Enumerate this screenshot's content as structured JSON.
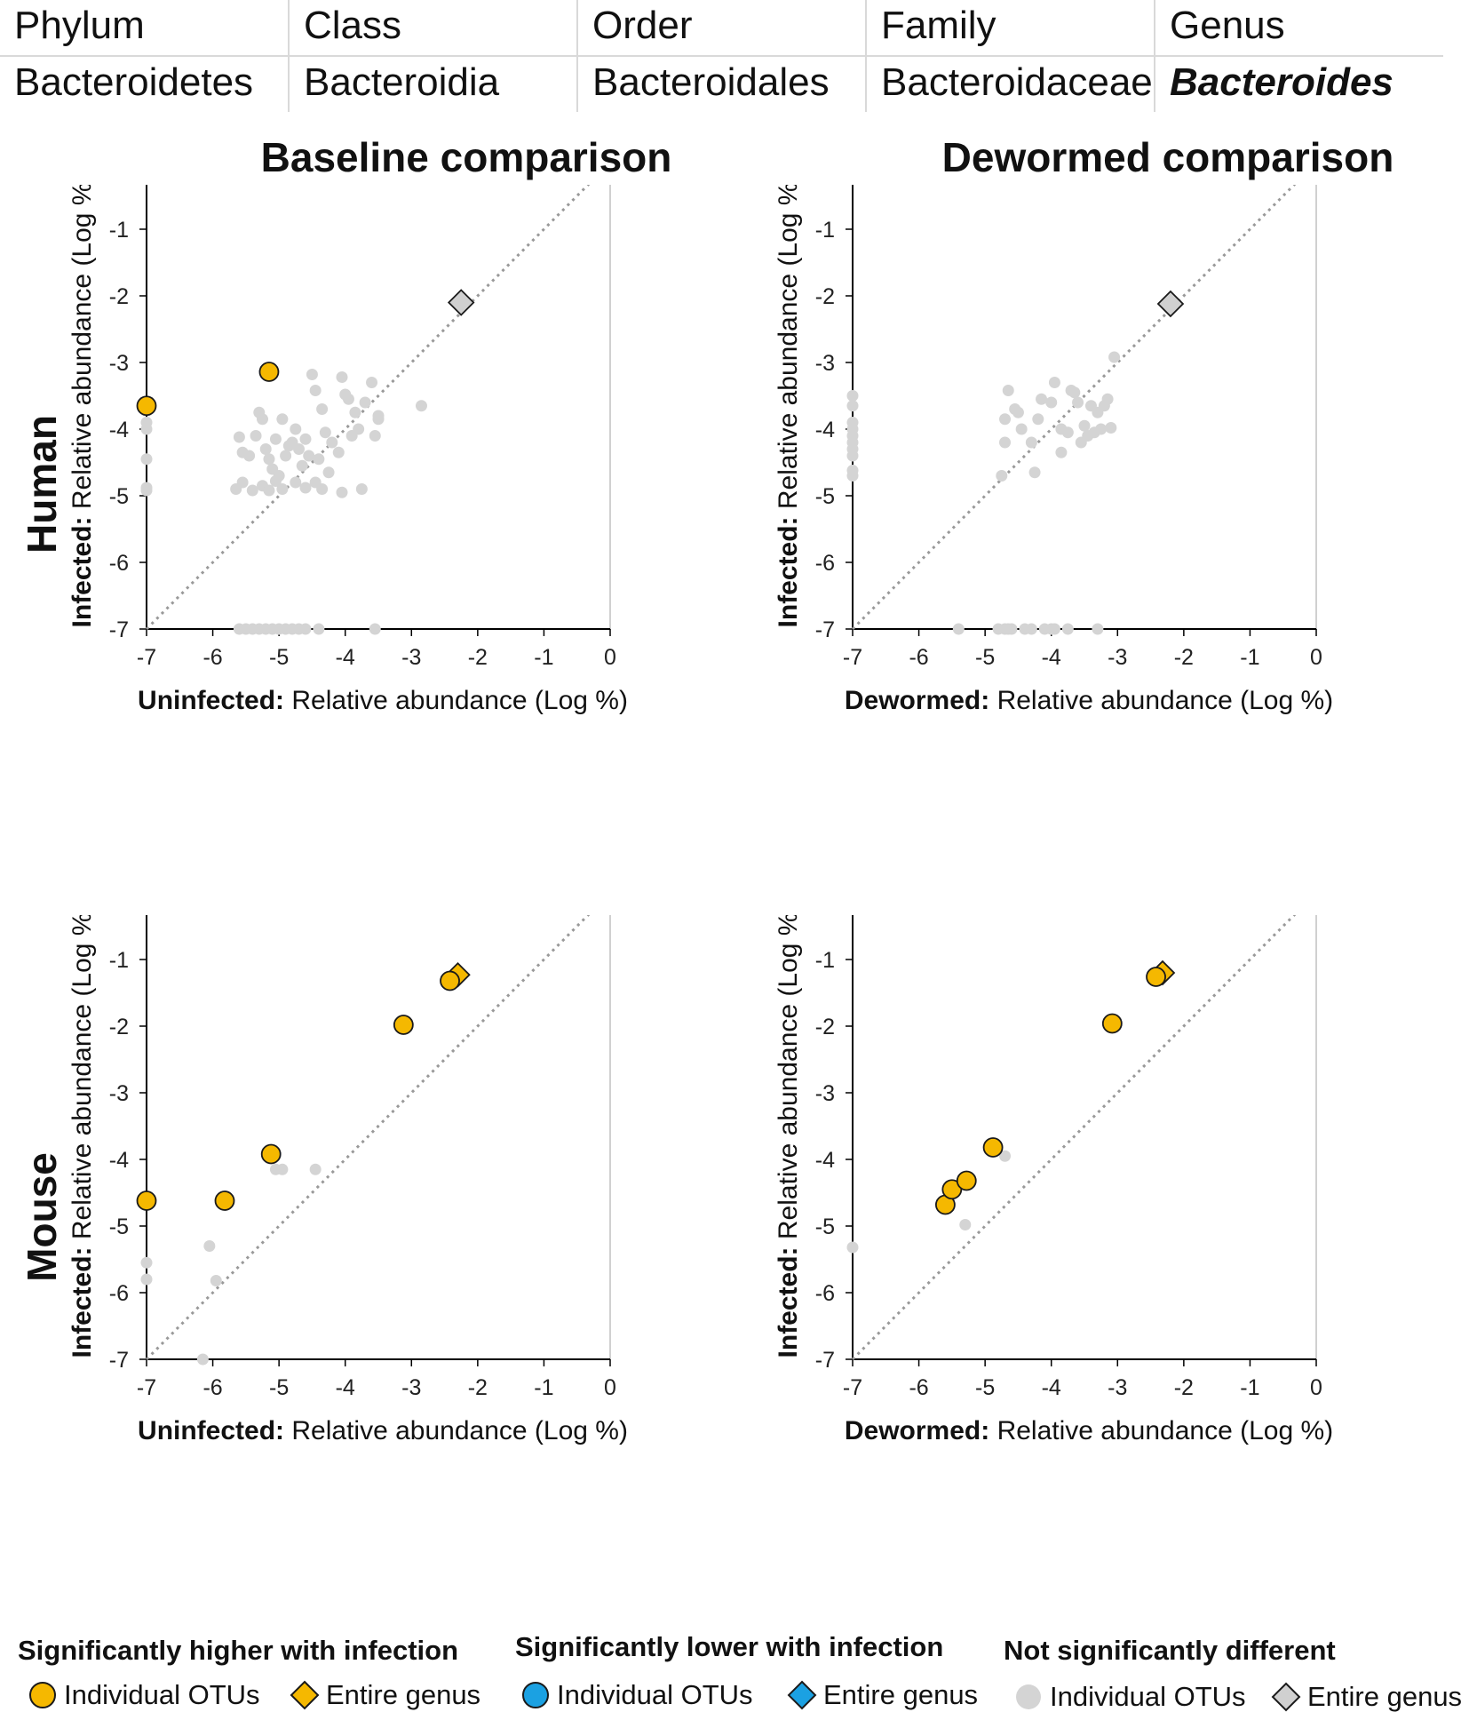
{
  "taxonomy": {
    "headers": [
      "Phylum",
      "Class",
      "Order",
      "Family",
      "Genus"
    ],
    "values": [
      "Bacteroidetes",
      "Bacteroidia",
      "Bacteroidales",
      "Bacteroidaceae",
      "Bacteroides"
    ]
  },
  "column_titles": [
    "Baseline comparison",
    "Dewormed comparison"
  ],
  "row_labels": [
    "Human",
    "Mouse"
  ],
  "colors": {
    "higher": "#f5b800",
    "lower": "#1ba1e2",
    "ns_point": "#d4d4d4",
    "ns_diamond": "#d0d0d0",
    "outline": "#1a1a1a",
    "diagonal": "#999999",
    "frame": "#d0d0d0"
  },
  "chart_data": [
    {
      "type": "scatter",
      "panel": "human-baseline",
      "xlabel_bold": "Uninfected:",
      "xlabel": "Relative abundance (Log %)",
      "ylabel_bold": "Infected:",
      "ylabel": "Relative abundance (Log %)",
      "xlim": [
        -7,
        0
      ],
      "ylim": [
        -7,
        0
      ],
      "xticks": [
        "-7",
        "-6",
        "-5",
        "-4",
        "-3",
        "-2",
        "-1",
        "0"
      ],
      "yticks": [
        "0",
        "-1",
        "-2",
        "-3",
        "-4",
        "-5",
        "-6",
        "-7"
      ],
      "diagonal": true,
      "ns_points": [
        [
          -7,
          -3.9
        ],
        [
          -7,
          -4.0
        ],
        [
          -7,
          -4.45
        ],
        [
          -7,
          -4.88
        ],
        [
          -7,
          -4.92
        ],
        [
          -5.6,
          -4.12
        ],
        [
          -5.55,
          -4.35
        ],
        [
          -5.45,
          -4.4
        ],
        [
          -5.35,
          -4.1
        ],
        [
          -5.3,
          -3.75
        ],
        [
          -5.25,
          -3.85
        ],
        [
          -5.2,
          -4.3
        ],
        [
          -5.15,
          -4.45
        ],
        [
          -5.1,
          -4.6
        ],
        [
          -5.05,
          -4.15
        ],
        [
          -5.0,
          -4.7
        ],
        [
          -4.95,
          -3.85
        ],
        [
          -4.9,
          -4.4
        ],
        [
          -4.85,
          -4.25
        ],
        [
          -4.8,
          -4.2
        ],
        [
          -4.75,
          -4.0
        ],
        [
          -4.7,
          -4.3
        ],
        [
          -4.65,
          -4.55
        ],
        [
          -4.6,
          -4.15
        ],
        [
          -4.55,
          -4.4
        ],
        [
          -4.5,
          -3.18
        ],
        [
          -4.45,
          -3.42
        ],
        [
          -4.4,
          -4.45
        ],
        [
          -4.35,
          -3.7
        ],
        [
          -4.3,
          -4.05
        ],
        [
          -4.25,
          -4.65
        ],
        [
          -4.2,
          -4.2
        ],
        [
          -4.1,
          -4.35
        ],
        [
          -4.05,
          -3.22
        ],
        [
          -4.0,
          -3.48
        ],
        [
          -3.95,
          -3.55
        ],
        [
          -3.9,
          -4.1
        ],
        [
          -3.85,
          -3.75
        ],
        [
          -3.8,
          -4.0
        ],
        [
          -3.7,
          -3.6
        ],
        [
          -3.6,
          -3.3
        ],
        [
          -3.55,
          -4.1
        ],
        [
          -3.5,
          -3.85
        ],
        [
          -3.5,
          -3.8
        ],
        [
          -2.85,
          -3.65
        ],
        [
          -5.65,
          -4.9
        ],
        [
          -5.55,
          -4.8
        ],
        [
          -5.4,
          -4.92
        ],
        [
          -5.25,
          -4.85
        ],
        [
          -5.15,
          -4.92
        ],
        [
          -5.05,
          -4.78
        ],
        [
          -4.95,
          -4.9
        ],
        [
          -4.75,
          -4.8
        ],
        [
          -4.6,
          -4.88
        ],
        [
          -4.45,
          -4.8
        ],
        [
          -4.35,
          -4.9
        ],
        [
          -4.05,
          -4.95
        ],
        [
          -3.75,
          -4.9
        ],
        [
          -5.6,
          -7
        ],
        [
          -5.5,
          -7
        ],
        [
          -5.4,
          -7
        ],
        [
          -5.3,
          -7
        ],
        [
          -5.2,
          -7
        ],
        [
          -5.1,
          -7
        ],
        [
          -5.0,
          -7
        ],
        [
          -4.9,
          -7
        ],
        [
          -4.8,
          -7
        ],
        [
          -4.7,
          -7
        ],
        [
          -4.6,
          -7
        ],
        [
          -4.4,
          -7
        ],
        [
          -3.55,
          -7
        ]
      ],
      "higher_points": [
        [
          -7,
          -3.65
        ],
        [
          -5.15,
          -3.14
        ]
      ],
      "ns_diamonds": [
        [
          -2.25,
          -2.1
        ]
      ],
      "higher_diamonds": []
    },
    {
      "type": "scatter",
      "panel": "human-dewormed",
      "xlabel_bold": "Dewormed:",
      "xlabel": "Relative abundance (Log %)",
      "ylabel_bold": "Infected:",
      "ylabel": "Relative abundance (Log %)",
      "xlim": [
        -7,
        0
      ],
      "ylim": [
        -7,
        0
      ],
      "xticks": [
        "-7",
        "-6",
        "-5",
        "-4",
        "-3",
        "-2",
        "-1",
        "0"
      ],
      "yticks": [
        "0",
        "-1",
        "-2",
        "-3",
        "-4",
        "-5",
        "-6",
        "-7"
      ],
      "diagonal": true,
      "ns_points": [
        [
          -7,
          -3.5
        ],
        [
          -7,
          -3.65
        ],
        [
          -7,
          -3.9
        ],
        [
          -7,
          -4.0
        ],
        [
          -7,
          -4.1
        ],
        [
          -7,
          -4.2
        ],
        [
          -7,
          -4.3
        ],
        [
          -7,
          -4.4
        ],
        [
          -7,
          -4.62
        ],
        [
          -7,
          -4.7
        ],
        [
          -4.75,
          -4.7
        ],
        [
          -4.7,
          -4.2
        ],
        [
          -4.7,
          -3.85
        ],
        [
          -4.65,
          -3.42
        ],
        [
          -4.55,
          -3.7
        ],
        [
          -4.5,
          -3.75
        ],
        [
          -4.45,
          -4.0
        ],
        [
          -4.3,
          -4.2
        ],
        [
          -4.25,
          -4.65
        ],
        [
          -4.2,
          -3.85
        ],
        [
          -4.15,
          -3.55
        ],
        [
          -4.0,
          -3.6
        ],
        [
          -3.95,
          -3.3
        ],
        [
          -3.85,
          -4.35
        ],
        [
          -3.85,
          -4.0
        ],
        [
          -3.75,
          -4.05
        ],
        [
          -3.7,
          -3.42
        ],
        [
          -3.65,
          -3.45
        ],
        [
          -3.6,
          -3.6
        ],
        [
          -3.55,
          -4.2
        ],
        [
          -3.5,
          -3.95
        ],
        [
          -3.45,
          -4.1
        ],
        [
          -3.4,
          -3.65
        ],
        [
          -3.35,
          -4.05
        ],
        [
          -3.3,
          -3.75
        ],
        [
          -3.25,
          -4.0
        ],
        [
          -3.2,
          -3.65
        ],
        [
          -3.15,
          -3.55
        ],
        [
          -3.1,
          -3.98
        ],
        [
          -3.05,
          -2.92
        ],
        [
          -5.4,
          -7
        ],
        [
          -4.8,
          -7
        ],
        [
          -4.7,
          -7
        ],
        [
          -4.65,
          -7
        ],
        [
          -4.6,
          -7
        ],
        [
          -4.4,
          -7
        ],
        [
          -4.3,
          -7
        ],
        [
          -4.1,
          -7
        ],
        [
          -4.0,
          -7
        ],
        [
          -3.95,
          -7
        ],
        [
          -3.75,
          -7
        ],
        [
          -3.3,
          -7
        ]
      ],
      "higher_points": [],
      "ns_diamonds": [
        [
          -2.2,
          -2.12
        ]
      ],
      "higher_diamonds": []
    },
    {
      "type": "scatter",
      "panel": "mouse-baseline",
      "xlabel_bold": "Uninfected:",
      "xlabel": "Relative abundance (Log %)",
      "ylabel_bold": "Infected:",
      "ylabel": "Relative abundance (Log %)",
      "xlim": [
        -7,
        0
      ],
      "ylim": [
        -7,
        0
      ],
      "xticks": [
        "-7",
        "-6",
        "-5",
        "-4",
        "-3",
        "-2",
        "-1",
        "0"
      ],
      "yticks": [
        "0",
        "-1",
        "-2",
        "-3",
        "-4",
        "-5",
        "-6",
        "-7"
      ],
      "diagonal": true,
      "ns_points": [
        [
          -7,
          -5.55
        ],
        [
          -7,
          -5.8
        ],
        [
          -6.05,
          -5.3
        ],
        [
          -5.95,
          -5.82
        ],
        [
          -6.15,
          -7
        ],
        [
          -5.05,
          -4.15
        ],
        [
          -4.95,
          -4.15
        ],
        [
          -4.45,
          -4.15
        ]
      ],
      "higher_points": [
        [
          -7,
          -4.62
        ],
        [
          -5.82,
          -4.62
        ],
        [
          -5.12,
          -3.92
        ],
        [
          -3.12,
          -1.98
        ],
        [
          -2.42,
          -1.32
        ]
      ],
      "ns_diamonds": [],
      "higher_diamonds": [
        [
          -2.3,
          -1.23
        ]
      ]
    },
    {
      "type": "scatter",
      "panel": "mouse-dewormed",
      "xlabel_bold": "Dewormed:",
      "xlabel": "Relative abundance (Log %)",
      "ylabel_bold": "Infected:",
      "ylabel": "Relative abundance (Log %)",
      "xlim": [
        -7,
        0
      ],
      "ylim": [
        -7,
        0
      ],
      "xticks": [
        "-7",
        "-6",
        "-5",
        "-4",
        "-3",
        "-2",
        "-1",
        "0"
      ],
      "yticks": [
        "0",
        "-1",
        "-2",
        "-3",
        "-4",
        "-5",
        "-6",
        "-7"
      ],
      "diagonal": true,
      "ns_points": [
        [
          -7,
          -5.32
        ],
        [
          -5.3,
          -4.98
        ],
        [
          -4.7,
          -3.95
        ]
      ],
      "higher_points": [
        [
          -5.6,
          -4.68
        ],
        [
          -5.5,
          -4.45
        ],
        [
          -5.28,
          -4.32
        ],
        [
          -4.88,
          -3.82
        ],
        [
          -3.08,
          -1.96
        ],
        [
          -2.42,
          -1.26
        ]
      ],
      "ns_diamonds": [],
      "higher_diamonds": [
        [
          -2.32,
          -1.2
        ]
      ]
    }
  ],
  "legend": {
    "groups": [
      {
        "heading": "Significantly higher with infection",
        "point_label": "Individual OTUs",
        "diamond_label": "Entire genus"
      },
      {
        "heading": "Significantly lower with infection",
        "point_label": "Individual OTUs",
        "diamond_label": "Entire genus"
      },
      {
        "heading": "Not significantly different",
        "point_label": "Individual OTUs",
        "diamond_label": "Entire genus"
      }
    ]
  }
}
